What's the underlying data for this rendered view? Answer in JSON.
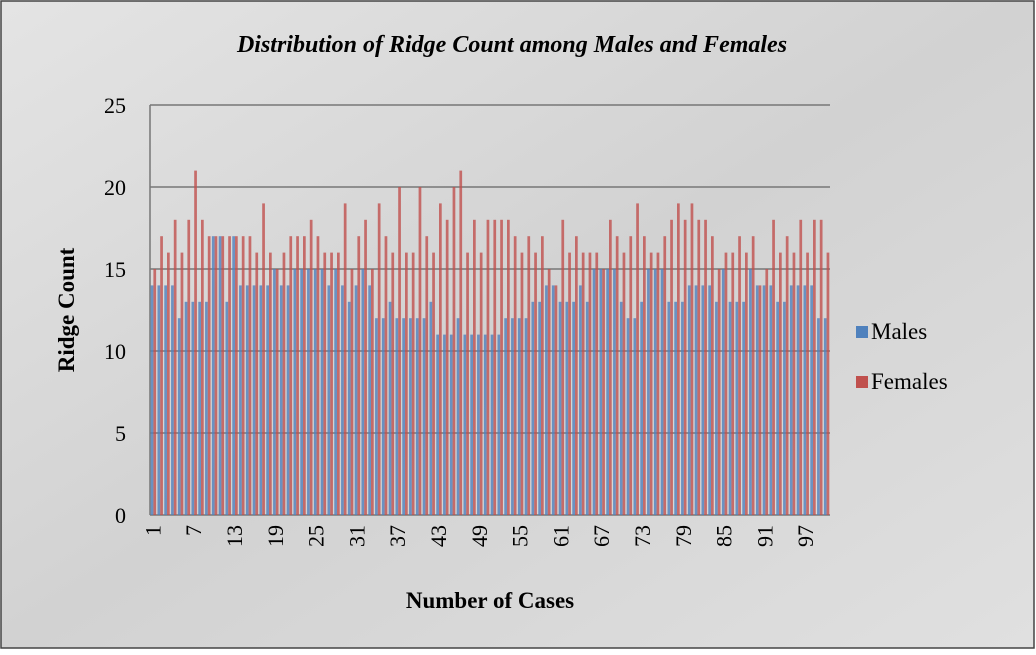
{
  "chart_data": {
    "type": "bar",
    "title": "Distribution of Ridge Count among Males and Females",
    "x_label": "Number of Cases",
    "y_label": "Ridge Count",
    "categories": [
      "1",
      null,
      null,
      null,
      null,
      null,
      "7",
      null,
      null,
      null,
      null,
      null,
      "13",
      null,
      null,
      null,
      null,
      null,
      "19",
      null,
      null,
      null,
      null,
      null,
      "25",
      null,
      null,
      null,
      null,
      null,
      "31",
      null,
      null,
      null,
      null,
      null,
      "37",
      null,
      null,
      null,
      null,
      null,
      "43",
      null,
      null,
      null,
      null,
      null,
      "49",
      null,
      null,
      null,
      null,
      null,
      "55",
      null,
      null,
      null,
      null,
      null,
      "61",
      null,
      null,
      null,
      null,
      null,
      "67",
      null,
      null,
      null,
      null,
      null,
      "73",
      null,
      null,
      null,
      null,
      null,
      "79",
      null,
      null,
      null,
      null,
      null,
      "85",
      null,
      null,
      null,
      null,
      null,
      "91",
      null,
      null,
      null,
      null,
      null,
      "97",
      null,
      null,
      null
    ],
    "series": [
      {
        "name": "Males",
        "color": "#4f81bd",
        "values": [
          14,
          14,
          14,
          14,
          12,
          13,
          13,
          13,
          13,
          17,
          17,
          13,
          17,
          14,
          14,
          14,
          14,
          14,
          15,
          14,
          14,
          15,
          15,
          15,
          15,
          15,
          14,
          15,
          14,
          13,
          14,
          15,
          14,
          12,
          12,
          13,
          12,
          12,
          12,
          12,
          12,
          13,
          11,
          11,
          11,
          12,
          11,
          11,
          11,
          11,
          11,
          11,
          12,
          12,
          12,
          12,
          13,
          13,
          14,
          14,
          13,
          13,
          13,
          14,
          13,
          15,
          15,
          15,
          15,
          13,
          12,
          12,
          13,
          15,
          15,
          15,
          13,
          13,
          13,
          14,
          14,
          14,
          14,
          13,
          15,
          13,
          13,
          13,
          15,
          14,
          14,
          14,
          13,
          13,
          14,
          14,
          14,
          14,
          12,
          12
        ]
      },
      {
        "name": "Females",
        "color": "#c0504d",
        "values": [
          15,
          17,
          16,
          18,
          16,
          18,
          21,
          18,
          17,
          17,
          17,
          17,
          17,
          17,
          17,
          16,
          19,
          16,
          15,
          16,
          17,
          17,
          17,
          18,
          17,
          16,
          16,
          16,
          19,
          15,
          17,
          18,
          15,
          19,
          17,
          16,
          20,
          16,
          16,
          20,
          17,
          16,
          19,
          18,
          20,
          21,
          16,
          18,
          16,
          18,
          18,
          18,
          18,
          17,
          16,
          17,
          16,
          17,
          15,
          14,
          18,
          16,
          17,
          16,
          16,
          16,
          15,
          18,
          17,
          16,
          17,
          19,
          17,
          16,
          16,
          17,
          18,
          19,
          18,
          19,
          18,
          18,
          17,
          15,
          16,
          16,
          17,
          16,
          17,
          14,
          15,
          18,
          16,
          17,
          16,
          18,
          16,
          18,
          18,
          16
        ]
      }
    ],
    "ylim": [
      0,
      25
    ],
    "yticks": [
      0,
      5,
      10,
      15,
      20,
      25
    ],
    "grid": true,
    "legend": "right"
  }
}
